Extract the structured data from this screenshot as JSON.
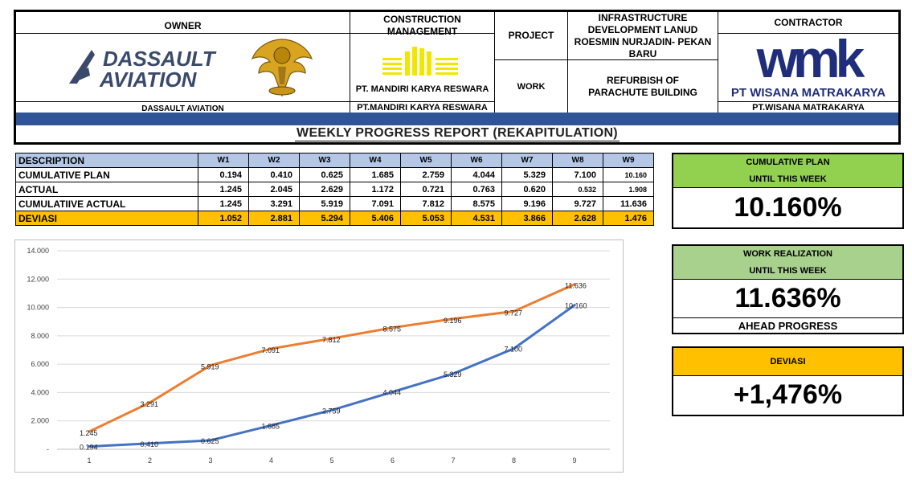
{
  "header": {
    "owner_label": "OWNER",
    "owner_logo_line1": "DASSAULT",
    "owner_logo_line2": "AVIATION",
    "owner_name": "DASSAULT AVIATION",
    "cm_label": "CONSTRUCTION MANAGEMENT",
    "cm_logo_text": "PT. MANDIRI KARYA RESWARA",
    "cm_name": "PT.MANDIRI KARYA RESWARA",
    "project_label": "PROJECT",
    "project_value": "INFRASTRUCTURE DEVELOPMENT LANUD ROESMIN NURJADIN- PEKAN BARU",
    "work_label": "WORK",
    "work_value": "REFURBISH OF PARACHUTE BUILDING",
    "contractor_label": "CONTRACTOR",
    "contractor_logo_text": "wmk",
    "contractor_logo_caption": "PT WISANA MATRAKARYA",
    "contractor_name": "PT.WISANA MATRAKARYA",
    "report_title": "WEEKLY PROGRESS REPORT (REKAPITULATION)"
  },
  "table": {
    "headers": [
      "DESCRIPTION",
      "W1",
      "W2",
      "W3",
      "W4",
      "W5",
      "W6",
      "W7",
      "W8",
      "W9"
    ],
    "rows": [
      {
        "label": "CUMULATIVE PLAN",
        "values": [
          "0.194",
          "0.410",
          "0.625",
          "1.685",
          "2.759",
          "4.044",
          "5.329",
          "7.100",
          "10.160"
        ]
      },
      {
        "label": "ACTUAL",
        "values": [
          "1.245",
          "2.045",
          "2.629",
          "1.172",
          "0.721",
          "0.763",
          "0.620",
          "0.532",
          "1.908"
        ]
      },
      {
        "label": "CUMULATIIVE ACTUAL",
        "values": [
          "1.245",
          "3.291",
          "5.919",
          "7.091",
          "7.812",
          "8.575",
          "9.196",
          "9.727",
          "11.636"
        ]
      },
      {
        "label": "DEVIASI",
        "values": [
          "1.052",
          "2.881",
          "5.294",
          "5.406",
          "5.053",
          "4.531",
          "3.866",
          "2.628",
          "1.476"
        ]
      }
    ]
  },
  "summary": {
    "plan_title_1": "CUMULATIVE PLAN",
    "plan_title_2": "UNTIL THIS WEEK",
    "plan_value": "10.160%",
    "real_title_1": "WORK REALIZATION",
    "real_title_2": "UNTIL THIS WEEK",
    "real_value": "11.636%",
    "real_status": "AHEAD PROGRESS",
    "dev_title": "DEVIASI",
    "dev_value": "+1,476%"
  },
  "colors": {
    "header_blue": "#2f5597",
    "table_head": "#b4c7e7",
    "deviasi": "#ffc000",
    "plan_green": "#92d050",
    "real_green": "#a9d18e",
    "series_plan": "#4472c4",
    "series_actual": "#ed7d31"
  },
  "chart_data": {
    "type": "line",
    "x": [
      1,
      2,
      3,
      4,
      5,
      6,
      7,
      8,
      9
    ],
    "x_tick_labels": [
      "1",
      "2",
      "3",
      "4",
      "5",
      "6",
      "7",
      "8",
      "9"
    ],
    "ylim": [
      0,
      14
    ],
    "y_tick_labels": [
      "-",
      "2.000",
      "4.000",
      "6.000",
      "8.000",
      "10.000",
      "12.000",
      "14.000"
    ],
    "grid": true,
    "series": [
      {
        "values": [
          0.194,
          0.41,
          0.625,
          1.685,
          2.759,
          4.044,
          5.329,
          7.1,
          10.16
        ],
        "labels": [
          "0.194",
          "0.410",
          "0.625",
          "1.685",
          "2.759",
          "4.044",
          "5.329",
          "7.100",
          "10.160"
        ],
        "color": "#4472c4"
      },
      {
        "values": [
          1.245,
          3.291,
          5.919,
          7.091,
          7.812,
          8.575,
          9.196,
          9.727,
          11.636
        ],
        "labels": [
          "1.245",
          "3.291",
          "5.919",
          "7.091",
          "7.812",
          "8.575",
          "9.196",
          "9.727",
          "11.636"
        ],
        "color": "#ed7d31"
      }
    ]
  }
}
